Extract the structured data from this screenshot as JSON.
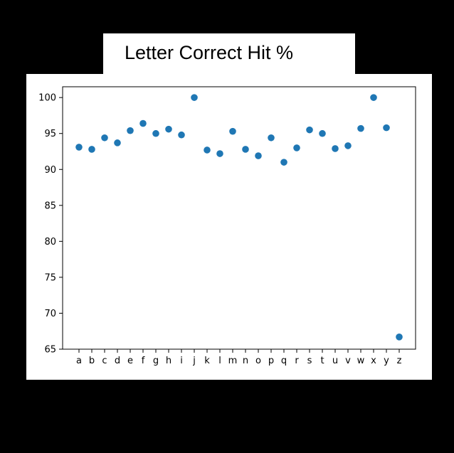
{
  "chart_data": {
    "type": "scatter",
    "title": "Letter Correct Hit %",
    "xlabel": "",
    "ylabel": "",
    "categories": [
      "a",
      "b",
      "c",
      "d",
      "e",
      "f",
      "g",
      "h",
      "i",
      "j",
      "k",
      "l",
      "m",
      "n",
      "o",
      "p",
      "q",
      "r",
      "s",
      "t",
      "u",
      "v",
      "w",
      "x",
      "y",
      "z"
    ],
    "values": [
      93.1,
      92.8,
      94.4,
      93.7,
      95.4,
      96.4,
      95.0,
      95.6,
      94.8,
      100.0,
      92.7,
      92.2,
      95.3,
      92.8,
      91.9,
      94.4,
      91.0,
      93.0,
      95.5,
      95.0,
      92.9,
      93.3,
      95.7,
      100.0,
      95.8,
      66.7
    ],
    "ylim": [
      65,
      101.5
    ],
    "yticks": [
      65,
      70,
      75,
      80,
      85,
      90,
      95,
      100
    ],
    "grid": false,
    "marker_color": "#1f77b4"
  }
}
